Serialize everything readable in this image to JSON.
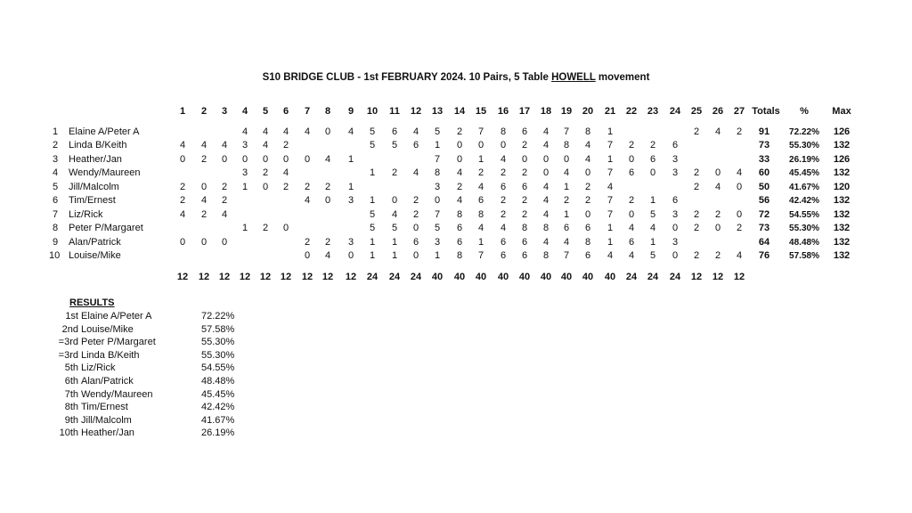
{
  "title": {
    "prefix": "S10 BRIDGE CLUB - 1st FEBRUARY 2024. 10 Pairs, 5 Table ",
    "underlined": "HOWELL",
    "suffix": " movement"
  },
  "columns": [
    "1",
    "2",
    "3",
    "4",
    "5",
    "6",
    "7",
    "8",
    "9",
    "10",
    "11",
    "12",
    "13",
    "14",
    "15",
    "16",
    "17",
    "18",
    "19",
    "20",
    "21",
    "22",
    "23",
    "24",
    "25",
    "26",
    "27"
  ],
  "headers": {
    "totals": "Totals",
    "pct": "%",
    "max": "Max"
  },
  "rows": [
    {
      "num": "1",
      "name": "Elaine A/Peter A",
      "scores": [
        "",
        "",
        "",
        "4",
        "4",
        "4",
        "4",
        "0",
        "4",
        "5",
        "6",
        "4",
        "5",
        "2",
        "7",
        "8",
        "6",
        "4",
        "7",
        "8",
        "1",
        "",
        "",
        "",
        "2",
        "4",
        "2"
      ],
      "total": "91",
      "pct": "72.22%",
      "max": "126"
    },
    {
      "num": "2",
      "name": "Linda B/Keith",
      "scores": [
        "4",
        "4",
        "4",
        "3",
        "4",
        "2",
        "",
        "",
        "",
        "5",
        "5",
        "6",
        "1",
        "0",
        "0",
        "0",
        "2",
        "4",
        "8",
        "4",
        "7",
        "2",
        "2",
        "6",
        "",
        "",
        ""
      ],
      "total": "73",
      "pct": "55.30%",
      "max": "132"
    },
    {
      "num": "3",
      "name": "Heather/Jan",
      "scores": [
        "0",
        "2",
        "0",
        "0",
        "0",
        "0",
        "0",
        "4",
        "1",
        "",
        "",
        "",
        "7",
        "0",
        "1",
        "4",
        "0",
        "0",
        "0",
        "4",
        "1",
        "0",
        "6",
        "3",
        "",
        "",
        ""
      ],
      "total": "33",
      "pct": "26.19%",
      "max": "126"
    },
    {
      "num": "4",
      "name": "Wendy/Maureen",
      "scores": [
        "",
        "",
        "",
        "3",
        "2",
        "4",
        "",
        "",
        "",
        "1",
        "2",
        "4",
        "8",
        "4",
        "2",
        "2",
        "2",
        "0",
        "4",
        "0",
        "7",
        "6",
        "0",
        "3",
        "2",
        "0",
        "4"
      ],
      "total": "60",
      "pct": "45.45%",
      "max": "132"
    },
    {
      "num": "5",
      "name": "Jill/Malcolm",
      "scores": [
        "2",
        "0",
        "2",
        "1",
        "0",
        "2",
        "2",
        "2",
        "1",
        "",
        "",
        "",
        "3",
        "2",
        "4",
        "6",
        "6",
        "4",
        "1",
        "2",
        "4",
        "",
        "",
        "",
        "2",
        "4",
        "0"
      ],
      "total": "50",
      "pct": "41.67%",
      "max": "120"
    },
    {
      "num": "6",
      "name": "Tim/Ernest",
      "scores": [
        "2",
        "4",
        "2",
        "",
        "",
        "",
        "4",
        "0",
        "3",
        "1",
        "0",
        "2",
        "0",
        "4",
        "6",
        "2",
        "2",
        "4",
        "2",
        "2",
        "7",
        "2",
        "1",
        "6",
        "",
        "",
        ""
      ],
      "total": "56",
      "pct": "42.42%",
      "max": "132"
    },
    {
      "num": "7",
      "name": "Liz/Rick",
      "scores": [
        "4",
        "2",
        "4",
        "",
        "",
        "",
        "",
        "",
        "",
        "5",
        "4",
        "2",
        "7",
        "8",
        "8",
        "2",
        "2",
        "4",
        "1",
        "0",
        "7",
        "0",
        "5",
        "3",
        "2",
        "2",
        "0"
      ],
      "total": "72",
      "pct": "54.55%",
      "max": "132"
    },
    {
      "num": "8",
      "name": "Peter P/Margaret",
      "scores": [
        "",
        "",
        "",
        "1",
        "2",
        "0",
        "",
        "",
        "",
        "5",
        "5",
        "0",
        "5",
        "6",
        "4",
        "4",
        "8",
        "8",
        "6",
        "6",
        "1",
        "4",
        "4",
        "0",
        "2",
        "0",
        "2"
      ],
      "total": "73",
      "pct": "55.30%",
      "max": "132"
    },
    {
      "num": "9",
      "name": "Alan/Patrick",
      "scores": [
        "0",
        "0",
        "0",
        "",
        "",
        "",
        "2",
        "2",
        "3",
        "1",
        "1",
        "6",
        "3",
        "6",
        "1",
        "6",
        "6",
        "4",
        "4",
        "8",
        "1",
        "6",
        "1",
        "3",
        "",
        "",
        ""
      ],
      "total": "64",
      "pct": "48.48%",
      "max": "132"
    },
    {
      "num": "10",
      "name": "Louise/Mike",
      "scores": [
        "",
        "",
        "",
        "",
        "",
        "",
        "0",
        "4",
        "0",
        "1",
        "1",
        "0",
        "1",
        "8",
        "7",
        "6",
        "6",
        "8",
        "7",
        "6",
        "4",
        "4",
        "5",
        "0",
        "2",
        "2",
        "4"
      ],
      "total": "76",
      "pct": "57.58%",
      "max": "132"
    }
  ],
  "column_totals": [
    "12",
    "12",
    "12",
    "12",
    "12",
    "12",
    "12",
    "12",
    "12",
    "24",
    "24",
    "24",
    "40",
    "40",
    "40",
    "40",
    "40",
    "40",
    "40",
    "40",
    "40",
    "24",
    "24",
    "24",
    "12",
    "12",
    "12"
  ],
  "results": {
    "heading": "RESULTS",
    "items": [
      {
        "rank": "1st",
        "name": "Elaine A/Peter A",
        "pct": "72.22%"
      },
      {
        "rank": "2nd",
        "name": "Louise/Mike",
        "pct": "57.58%"
      },
      {
        "rank": "=3rd",
        "name": "Peter P/Margaret",
        "pct": "55.30%"
      },
      {
        "rank": "=3rd",
        "name": "Linda B/Keith",
        "pct": "55.30%"
      },
      {
        "rank": "5th",
        "name": "Liz/Rick",
        "pct": "54.55%"
      },
      {
        "rank": "6th",
        "name": "Alan/Patrick",
        "pct": "48.48%"
      },
      {
        "rank": "7th",
        "name": "Wendy/Maureen",
        "pct": "45.45%"
      },
      {
        "rank": "8th",
        "name": "Tim/Ernest",
        "pct": "42.42%"
      },
      {
        "rank": "9th",
        "name": "Jill/Malcolm",
        "pct": "41.67%"
      },
      {
        "rank": "10th",
        "name": "Heather/Jan",
        "pct": "26.19%"
      }
    ]
  }
}
